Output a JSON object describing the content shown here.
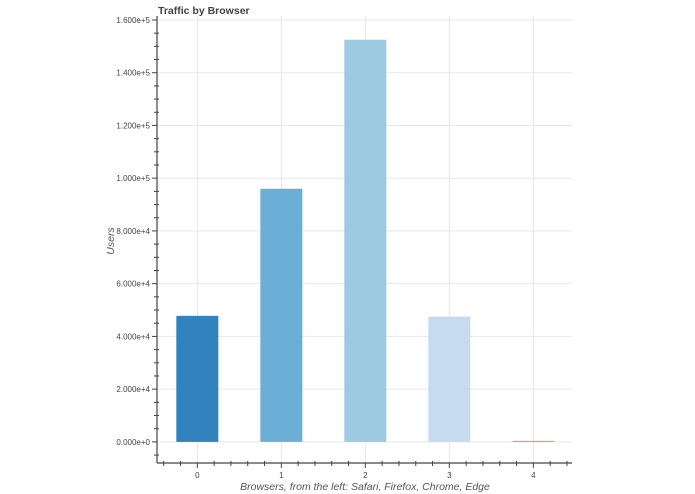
{
  "chart_data": {
    "type": "bar",
    "title": "Traffic by Browser",
    "xlabel": "Browsers,  from the left: Safari, Firefox, Chrome, Edge",
    "ylabel": "Users",
    "categories": [
      0,
      1,
      2,
      3,
      4
    ],
    "x_tick_labels": [
      "0",
      "1",
      "2",
      "3",
      "4"
    ],
    "values": [
      47800,
      96000,
      152500,
      47500,
      400
    ],
    "colors": [
      "#3182bd",
      "#6baed6",
      "#9ecae1",
      "#c6dbef",
      "#fd8d3c"
    ],
    "bar_width": 0.5,
    "xlim": [
      -0.48,
      4.46
    ],
    "ylim": [
      -8000,
      161500
    ],
    "y_ticks": [
      0,
      20000,
      40000,
      60000,
      80000,
      100000,
      120000,
      140000,
      160000
    ],
    "y_tick_labels": [
      "0.000e+0",
      "2.000e+4",
      "4.000e+4",
      "6.000e+4",
      "8.000e+4",
      "1.000e+5",
      "1.200e+5",
      "1.400e+5",
      "1.600e+5"
    ],
    "grid": true,
    "legend": "none"
  }
}
